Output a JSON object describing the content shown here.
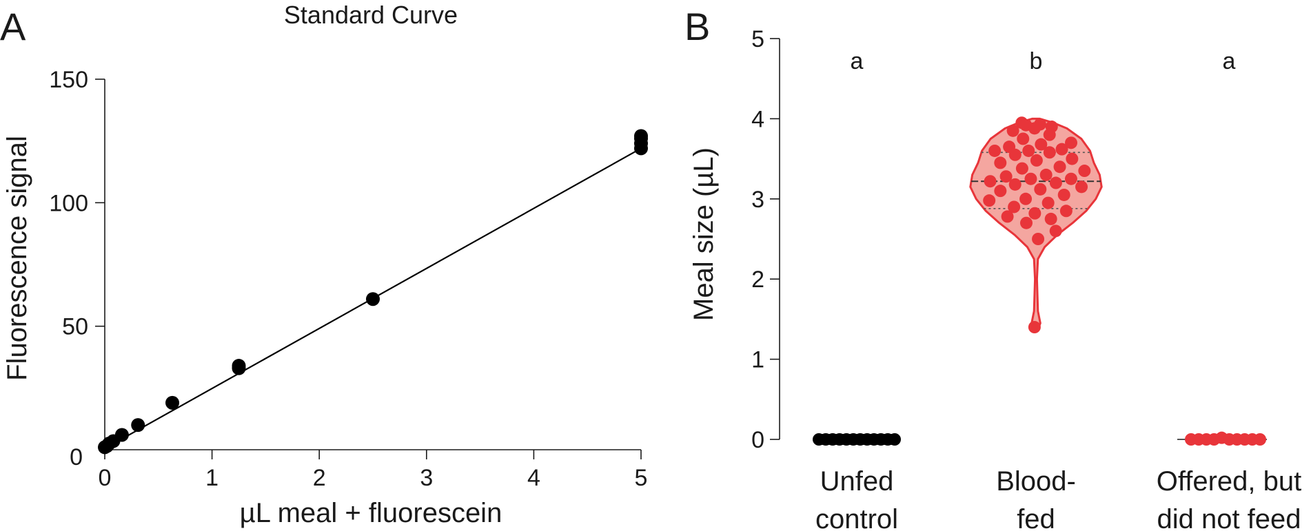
{
  "chart_data": [
    {
      "type": "scatter",
      "panel_label": "A",
      "title": "Standard Curve",
      "xlabel": "µL  meal + fluorescein",
      "ylabel": "Fluorescence signal",
      "xlim": [
        0,
        5
      ],
      "ylim": [
        0,
        150
      ],
      "xticks": [
        "0",
        "1",
        "2",
        "3",
        "4",
        "5"
      ],
      "yticks": [
        "0",
        "50",
        "100",
        "150"
      ],
      "grid": false,
      "points": [
        {
          "x": 0,
          "y": 1
        },
        {
          "x": 0.02,
          "y": 1.5
        },
        {
          "x": 0.04,
          "y": 2.5
        },
        {
          "x": 0.08,
          "y": 3.5
        },
        {
          "x": 0.16,
          "y": 6
        },
        {
          "x": 0.31,
          "y": 10
        },
        {
          "x": 0.63,
          "y": 19
        },
        {
          "x": 1.25,
          "y": 33
        },
        {
          "x": 1.25,
          "y": 34
        },
        {
          "x": 2.5,
          "y": 61
        },
        {
          "x": 5,
          "y": 122
        },
        {
          "x": 5,
          "y": 124
        },
        {
          "x": 5,
          "y": 126
        },
        {
          "x": 5,
          "y": 127
        }
      ],
      "fit_line": {
        "x0": 0,
        "y0": 0.5,
        "x1": 5,
        "y1": 122
      }
    },
    {
      "type": "violin",
      "panel_label": "B",
      "ylabel": "Meal size (µL)",
      "ylim": [
        0,
        5
      ],
      "yticks": [
        "0",
        "1",
        "2",
        "3",
        "4",
        "5"
      ],
      "grid": false,
      "categories": [
        "Unfed control",
        "Blood-fed",
        "Offered, but did not feed"
      ],
      "category_lines": [
        [
          "Unfed",
          "control"
        ],
        [
          "Blood-",
          "fed"
        ],
        [
          "Offered, but",
          "did not feed"
        ]
      ],
      "significance_letters": [
        "a",
        "b",
        "a"
      ],
      "colors": {
        "unfed": "#000000",
        "fed": "#e8353a",
        "fed_fill": "#f4a6a0",
        "not_fed": "#e8353a"
      },
      "unfed_values": [
        0,
        0,
        0,
        0,
        0,
        0,
        0,
        0,
        0,
        0,
        0,
        0
      ],
      "not_fed_values": [
        0,
        0,
        0,
        0,
        0.02,
        0,
        0,
        0,
        0,
        0
      ],
      "blood_fed_values": [
        3.95,
        3.93,
        3.92,
        3.9,
        3.88,
        3.85,
        3.8,
        3.75,
        3.7,
        3.68,
        3.65,
        3.62,
        3.6,
        3.6,
        3.58,
        3.55,
        3.5,
        3.48,
        3.45,
        3.4,
        3.38,
        3.35,
        3.3,
        3.28,
        3.25,
        3.25,
        3.22,
        3.2,
        3.18,
        3.15,
        3.12,
        3.1,
        3.05,
        3.0,
        2.98,
        2.95,
        2.9,
        2.85,
        2.82,
        2.78,
        2.75,
        2.7,
        2.6,
        2.5,
        1.4
      ],
      "blood_fed_median": 3.22,
      "blood_fed_quartiles": [
        2.88,
        3.58
      ],
      "violin_profile": [
        {
          "y": 1.35,
          "w": 0.015
        },
        {
          "y": 1.45,
          "w": 0.045
        },
        {
          "y": 1.6,
          "w": 0.02
        },
        {
          "y": 2.0,
          "w": 0.01
        },
        {
          "y": 2.25,
          "w": 0.02
        },
        {
          "y": 2.4,
          "w": 0.09
        },
        {
          "y": 2.55,
          "w": 0.22
        },
        {
          "y": 2.7,
          "w": 0.38
        },
        {
          "y": 2.85,
          "w": 0.52
        },
        {
          "y": 3.0,
          "w": 0.62
        },
        {
          "y": 3.15,
          "w": 0.68
        },
        {
          "y": 3.3,
          "w": 0.66
        },
        {
          "y": 3.45,
          "w": 0.6
        },
        {
          "y": 3.6,
          "w": 0.56
        },
        {
          "y": 3.75,
          "w": 0.47
        },
        {
          "y": 3.88,
          "w": 0.32
        },
        {
          "y": 3.95,
          "w": 0.18
        },
        {
          "y": 4.0,
          "w": 0.04
        }
      ]
    }
  ]
}
